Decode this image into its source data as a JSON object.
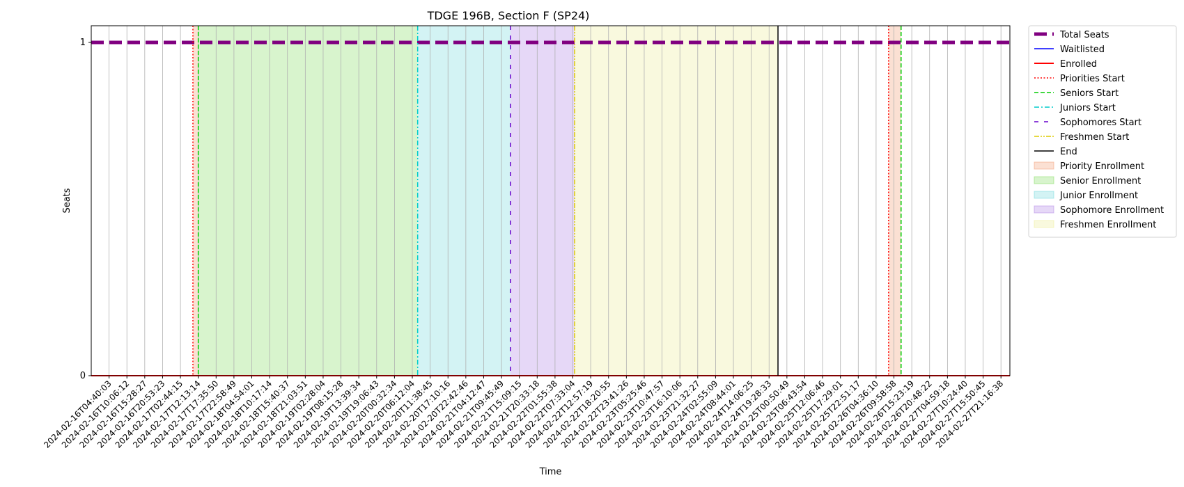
{
  "chart_data": {
    "type": "line",
    "title": "TDGE 196B, Section F (SP24)",
    "xlabel": "Time",
    "ylabel": "Seats",
    "ylim": [
      0,
      1.05
    ],
    "yticks": [
      "0",
      "1"
    ],
    "x_ticks": [
      "2024-02-16T04:40:03",
      "2024-02-16T10:06:12",
      "2024-02-16T15:28:27",
      "2024-02-16T20:53:23",
      "2024-02-17T02:44:15",
      "2024-02-17T12:13:14",
      "2024-02-17T17:35:50",
      "2024-02-17T22:58:49",
      "2024-02-18T04:54:01",
      "2024-02-18T10:17:14",
      "2024-02-18T15:40:37",
      "2024-02-18T21:03:51",
      "2024-02-19T02:28:04",
      "2024-02-19T08:15:28",
      "2024-02-19T13:39:34",
      "2024-02-19T19:06:43",
      "2024-02-20T00:32:34",
      "2024-02-20T06:12:04",
      "2024-02-20T11:38:45",
      "2024-02-20T17:10:16",
      "2024-02-20T22:42:46",
      "2024-02-21T04:12:47",
      "2024-02-21T09:45:49",
      "2024-02-21T15:09:15",
      "2024-02-21T20:33:18",
      "2024-02-22T01:55:38",
      "2024-02-22T07:33:04",
      "2024-02-22T12:57:19",
      "2024-02-22T18:20:55",
      "2024-02-22T23:41:26",
      "2024-02-23T05:25:46",
      "2024-02-23T10:47:57",
      "2024-02-23T16:10:06",
      "2024-02-23T21:32:27",
      "2024-02-24T02:55:09",
      "2024-02-24T08:44:01",
      "2024-02-24T14:06:25",
      "2024-02-24T19:28:33",
      "2024-02-25T00:50:49",
      "2024-02-25T06:43:54",
      "2024-02-25T12:06:46",
      "2024-02-25T17:29:01",
      "2024-02-25T22:51:17",
      "2024-02-26T04:36:10",
      "2024-02-26T09:58:58",
      "2024-02-26T15:23:19",
      "2024-02-26T20:48:22",
      "2024-02-27T04:59:18",
      "2024-02-27T10:24:40",
      "2024-02-27T15:50:45",
      "2024-02-27T21:16:38"
    ],
    "x_range": [
      -1,
      50.5
    ],
    "series": [
      {
        "name": "Total Seats",
        "color": "#800080",
        "style": "dashed-thick",
        "x": [
          -1,
          50.5
        ],
        "values": [
          1,
          1
        ]
      },
      {
        "name": "Waitlisted",
        "color": "#0000ff",
        "style": "solid",
        "x": [
          -1,
          50.5
        ],
        "values": [
          0,
          0
        ]
      },
      {
        "name": "Enrolled",
        "color": "#ff0000",
        "style": "solid-thick",
        "x": [
          -1,
          50.5
        ],
        "values": [
          0,
          0
        ]
      }
    ],
    "vlines": [
      {
        "name": "Priorities Start",
        "color": "#ff0000",
        "style": "dotted",
        "x": [
          4.7,
          43.7
        ]
      },
      {
        "name": "Seniors Start",
        "color": "#00cc00",
        "style": "dashed",
        "x": [
          5.0,
          44.4
        ]
      },
      {
        "name": "Juniors Start",
        "color": "#00cccc",
        "style": "dashdot",
        "x": [
          17.3
        ]
      },
      {
        "name": "Sophomores Start",
        "color": "#6600cc",
        "style": "loosedash",
        "x": [
          22.5
        ]
      },
      {
        "name": "Freshmen Start",
        "color": "#ddcc00",
        "style": "dashdotdot",
        "x": [
          26.1
        ]
      },
      {
        "name": "End",
        "color": "#000000",
        "style": "solid",
        "x": [
          37.5
        ]
      }
    ],
    "spans": [
      {
        "name": "Priority Enrollment",
        "color": "#f4a582",
        "ranges": [
          [
            4.7,
            5.0
          ],
          [
            43.7,
            44.4
          ]
        ]
      },
      {
        "name": "Senior Enrollment",
        "color": "#90e070",
        "ranges": [
          [
            5.0,
            17.3
          ]
        ]
      },
      {
        "name": "Junior Enrollment",
        "color": "#80dde0",
        "ranges": [
          [
            17.3,
            22.5
          ]
        ]
      },
      {
        "name": "Sophomore Enrollment",
        "color": "#b890e8",
        "ranges": [
          [
            22.5,
            26.1
          ]
        ]
      },
      {
        "name": "Freshmen Enrollment",
        "color": "#eeeea0",
        "ranges": [
          [
            26.1,
            37.5
          ]
        ]
      }
    ],
    "legend_position": "outside-right",
    "grid": "vertical"
  }
}
